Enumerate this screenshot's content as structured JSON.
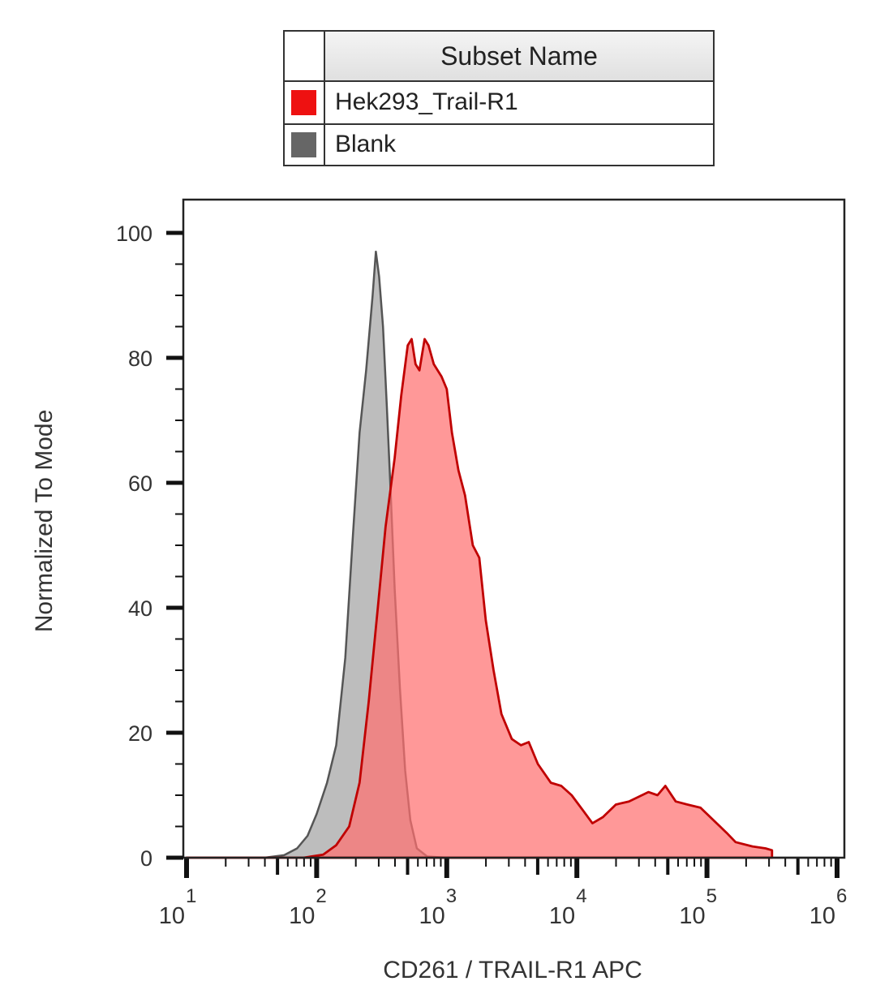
{
  "legend": {
    "header": "Subset Name",
    "items": [
      {
        "label": "Hek293_Trail-R1",
        "color": "#ee1111"
      },
      {
        "label": "Blank",
        "color": "#666666"
      }
    ]
  },
  "chart_data": {
    "type": "area",
    "title": "",
    "xlabel": "CD261 / TRAIL-R1 APC",
    "ylabel": "Normalized To Mode",
    "xscale": "log",
    "xlim": [
      10,
      1000000
    ],
    "ylim": [
      0,
      100
    ],
    "x_ticks": [
      {
        "base": "10",
        "exp": "1",
        "value": 10
      },
      {
        "base": "10",
        "exp": "2",
        "value": 100
      },
      {
        "base": "10",
        "exp": "3",
        "value": 1000
      },
      {
        "base": "10",
        "exp": "4",
        "value": 10000
      },
      {
        "base": "10",
        "exp": "5",
        "value": 100000
      },
      {
        "base": "10",
        "exp": "6",
        "value": 1000000
      }
    ],
    "y_ticks": [
      0,
      20,
      40,
      60,
      80,
      100
    ],
    "grid": false,
    "legend_position": "top",
    "series": [
      {
        "name": "Blank",
        "fill": "#bdbdbd",
        "stroke": "#555555",
        "points_log10x_y": [
          [
            1.0,
            0
          ],
          [
            1.6,
            0
          ],
          [
            1.75,
            0.4
          ],
          [
            1.85,
            1.5
          ],
          [
            1.93,
            3.5
          ],
          [
            2.0,
            7
          ],
          [
            2.08,
            12
          ],
          [
            2.15,
            18
          ],
          [
            2.22,
            32
          ],
          [
            2.28,
            52
          ],
          [
            2.33,
            68
          ],
          [
            2.38,
            78
          ],
          [
            2.43,
            90
          ],
          [
            2.455,
            97
          ],
          [
            2.48,
            93
          ],
          [
            2.51,
            85
          ],
          [
            2.54,
            72
          ],
          [
            2.57,
            58
          ],
          [
            2.6,
            43
          ],
          [
            2.64,
            27
          ],
          [
            2.68,
            14
          ],
          [
            2.72,
            6
          ],
          [
            2.77,
            1.5
          ],
          [
            2.85,
            0.2
          ],
          [
            3.0,
            0
          ],
          [
            6.0,
            0
          ]
        ]
      },
      {
        "name": "Hek293_Trail-R1",
        "fill": "#ff7070",
        "stroke": "#c00000",
        "points_log10x_y": [
          [
            1.0,
            0
          ],
          [
            1.9,
            0
          ],
          [
            2.05,
            0.5
          ],
          [
            2.15,
            2
          ],
          [
            2.25,
            5
          ],
          [
            2.33,
            12
          ],
          [
            2.4,
            25
          ],
          [
            2.47,
            40
          ],
          [
            2.53,
            53
          ],
          [
            2.6,
            64
          ],
          [
            2.65,
            74
          ],
          [
            2.7,
            82
          ],
          [
            2.73,
            83
          ],
          [
            2.76,
            79
          ],
          [
            2.79,
            78
          ],
          [
            2.83,
            83
          ],
          [
            2.86,
            82
          ],
          [
            2.9,
            79
          ],
          [
            2.96,
            77
          ],
          [
            3.0,
            75
          ],
          [
            3.04,
            68
          ],
          [
            3.09,
            62
          ],
          [
            3.14,
            58
          ],
          [
            3.2,
            50
          ],
          [
            3.25,
            48
          ],
          [
            3.3,
            38
          ],
          [
            3.36,
            30
          ],
          [
            3.42,
            23
          ],
          [
            3.5,
            19
          ],
          [
            3.57,
            18
          ],
          [
            3.63,
            18.5
          ],
          [
            3.7,
            15
          ],
          [
            3.8,
            12
          ],
          [
            3.88,
            11.5
          ],
          [
            3.96,
            10
          ],
          [
            4.05,
            7.5
          ],
          [
            4.12,
            5.5
          ],
          [
            4.2,
            6.5
          ],
          [
            4.3,
            8.5
          ],
          [
            4.4,
            9
          ],
          [
            4.55,
            10.5
          ],
          [
            4.62,
            10
          ],
          [
            4.68,
            11.5
          ],
          [
            4.76,
            9
          ],
          [
            4.85,
            8.5
          ],
          [
            4.95,
            8
          ],
          [
            5.05,
            6
          ],
          [
            5.15,
            4
          ],
          [
            5.22,
            2.5
          ],
          [
            5.35,
            1.8
          ],
          [
            5.45,
            1.5
          ],
          [
            5.5,
            1.2
          ]
        ]
      }
    ]
  }
}
